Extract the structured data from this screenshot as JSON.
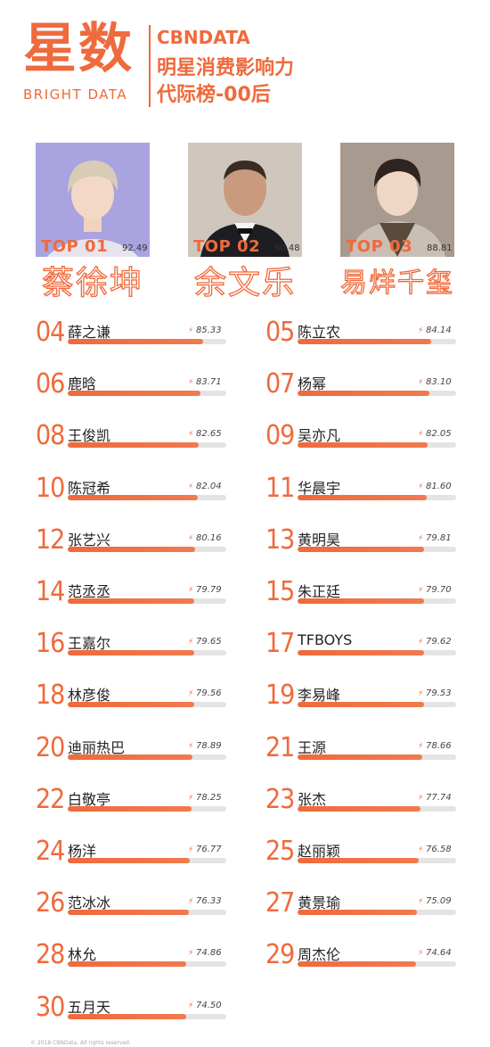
{
  "header": {
    "brand_cn": "星数",
    "brand_en": "BRIGHT DATA",
    "logo": "CBNDATA",
    "title_line1": "明星消费影响力",
    "title_line2": "代际榜-00后"
  },
  "top3": [
    {
      "label": "TOP 01",
      "score": "92.49",
      "name": "蔡徐坤",
      "photo_bg": "#a9a3e0"
    },
    {
      "label": "TOP 02",
      "score": "90.48",
      "name": "余文乐",
      "photo_bg": "#cfc7bd"
    },
    {
      "label": "TOP 03",
      "score": "88.81",
      "name": "易烊千玺",
      "photo_bg": "#a89a8e"
    }
  ],
  "chart_data": {
    "type": "bar",
    "title": "明星消费影响力代际榜-00后",
    "xlabel": "",
    "ylabel": "",
    "ylim": [
      0,
      100
    ],
    "categories": [
      "蔡徐坤",
      "余文乐",
      "易烊千玺",
      "薛之谦",
      "陈立农",
      "鹿晗",
      "杨幂",
      "王俊凯",
      "吴亦凡",
      "陈冠希",
      "华晨宇",
      "张艺兴",
      "黄明昊",
      "范丞丞",
      "朱正廷",
      "王嘉尔",
      "TFBOYS",
      "林彦俊",
      "李易峰",
      "迪丽热巴",
      "王源",
      "白敬亭",
      "张杰",
      "杨洋",
      "赵丽颖",
      "范冰冰",
      "黄景瑜",
      "林允",
      "周杰伦",
      "五月天"
    ],
    "values": [
      92.49,
      90.48,
      88.81,
      85.33,
      84.14,
      83.71,
      83.1,
      82.65,
      82.05,
      82.04,
      81.6,
      80.16,
      79.81,
      79.79,
      79.7,
      79.65,
      79.62,
      79.56,
      79.53,
      78.89,
      78.66,
      78.25,
      77.74,
      76.77,
      76.58,
      76.33,
      75.09,
      74.86,
      74.64,
      74.5
    ]
  },
  "rows": [
    {
      "rank": "04",
      "name": "薛之谦",
      "score": "85.33",
      "value": 85.33
    },
    {
      "rank": "05",
      "name": "陈立农",
      "score": "84.14",
      "value": 84.14
    },
    {
      "rank": "06",
      "name": "鹿晗",
      "score": "83.71",
      "value": 83.71
    },
    {
      "rank": "07",
      "name": "杨幂",
      "score": "83.10",
      "value": 83.1
    },
    {
      "rank": "08",
      "name": "王俊凯",
      "score": "82.65",
      "value": 82.65
    },
    {
      "rank": "09",
      "name": "吴亦凡",
      "score": "82.05",
      "value": 82.05
    },
    {
      "rank": "10",
      "name": "陈冠希",
      "score": "82.04",
      "value": 82.04
    },
    {
      "rank": "11",
      "name": "华晨宇",
      "score": "81.60",
      "value": 81.6
    },
    {
      "rank": "12",
      "name": "张艺兴",
      "score": "80.16",
      "value": 80.16
    },
    {
      "rank": "13",
      "name": "黄明昊",
      "score": "79.81",
      "value": 79.81
    },
    {
      "rank": "14",
      "name": "范丞丞",
      "score": "79.79",
      "value": 79.79
    },
    {
      "rank": "15",
      "name": "朱正廷",
      "score": "79.70",
      "value": 79.7
    },
    {
      "rank": "16",
      "name": "王嘉尔",
      "score": "79.65",
      "value": 79.65
    },
    {
      "rank": "17",
      "name": "TFBOYS",
      "score": "79.62",
      "value": 79.62
    },
    {
      "rank": "18",
      "name": "林彦俊",
      "score": "79.56",
      "value": 79.56
    },
    {
      "rank": "19",
      "name": "李易峰",
      "score": "79.53",
      "value": 79.53
    },
    {
      "rank": "20",
      "name": "迪丽热巴",
      "score": "78.89",
      "value": 78.89
    },
    {
      "rank": "21",
      "name": "王源",
      "score": "78.66",
      "value": 78.66
    },
    {
      "rank": "22",
      "name": "白敬亭",
      "score": "78.25",
      "value": 78.25
    },
    {
      "rank": "23",
      "name": "张杰",
      "score": "77.74",
      "value": 77.74
    },
    {
      "rank": "24",
      "name": "杨洋",
      "score": "76.77",
      "value": 76.77
    },
    {
      "rank": "25",
      "name": "赵丽颖",
      "score": "76.58",
      "value": 76.58
    },
    {
      "rank": "26",
      "name": "范冰冰",
      "score": "76.33",
      "value": 76.33
    },
    {
      "rank": "27",
      "name": "黄景瑜",
      "score": "75.09",
      "value": 75.09
    },
    {
      "rank": "28",
      "name": "林允",
      "score": "74.86",
      "value": 74.86
    },
    {
      "rank": "29",
      "name": "周杰伦",
      "score": "74.64",
      "value": 74.64
    },
    {
      "rank": "30",
      "name": "五月天",
      "score": "74.50",
      "value": 74.5
    }
  ],
  "footer": "© 2018 CBNData. All rights reserved.",
  "colors": {
    "accent": "#ef6a3c",
    "track": "#e4e4e4"
  },
  "icons": {
    "score_marker": "lightning-bolt-icon"
  }
}
